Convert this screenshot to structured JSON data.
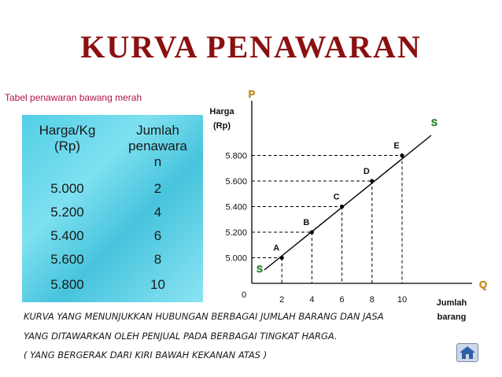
{
  "title": "KURVA PENAWARAN",
  "table": {
    "caption": "Tabel penawaran bawang merah",
    "headers": [
      "Harga/Kg\n(Rp)",
      "Jumlah\npenawara\nn"
    ],
    "rows": [
      [
        "5.000",
        "2"
      ],
      [
        "5.200",
        "4"
      ],
      [
        "5.400",
        "6"
      ],
      [
        "5.600",
        "8"
      ],
      [
        "5.800",
        "10"
      ]
    ]
  },
  "chart_data": {
    "type": "line",
    "axis_letter_y": "P",
    "axis_letter_x": "Q",
    "ylabel_line1": "Harga",
    "ylabel_line2": "(Rp)",
    "xlabel_line1": "Jumlah",
    "xlabel_line2": "barang",
    "origin_label": "0",
    "curve_label": "S",
    "x_ticks": [
      "2",
      "4",
      "6",
      "8",
      "10"
    ],
    "y_ticks": [
      "5.000",
      "5.200",
      "5.400",
      "5.600",
      "5.800"
    ],
    "points": [
      {
        "label": "A",
        "x": 2,
        "y": 5000
      },
      {
        "label": "B",
        "x": 4,
        "y": 5200
      },
      {
        "label": "C",
        "x": 6,
        "y": 5400
      },
      {
        "label": "D",
        "x": 8,
        "y": 5600
      },
      {
        "label": "E",
        "x": 10,
        "y": 5800
      }
    ],
    "colors": {
      "axis_letter": "#e0a020",
      "curve_label": "#2f9e2f"
    }
  },
  "description": [
    "KURVA YANG MENUNJUKKAN HUBUNGAN BERBAGAI JUMLAH BARANG DAN JASA",
    "YANG DITAWARKAN OLEH PENJUAL PADA BERBAGAI TINGKAT HARGA.",
    "( YANG BERGERAK DARI KIRI BAWAH KEKANAN ATAS )"
  ],
  "home_button_icon": "home-icon"
}
